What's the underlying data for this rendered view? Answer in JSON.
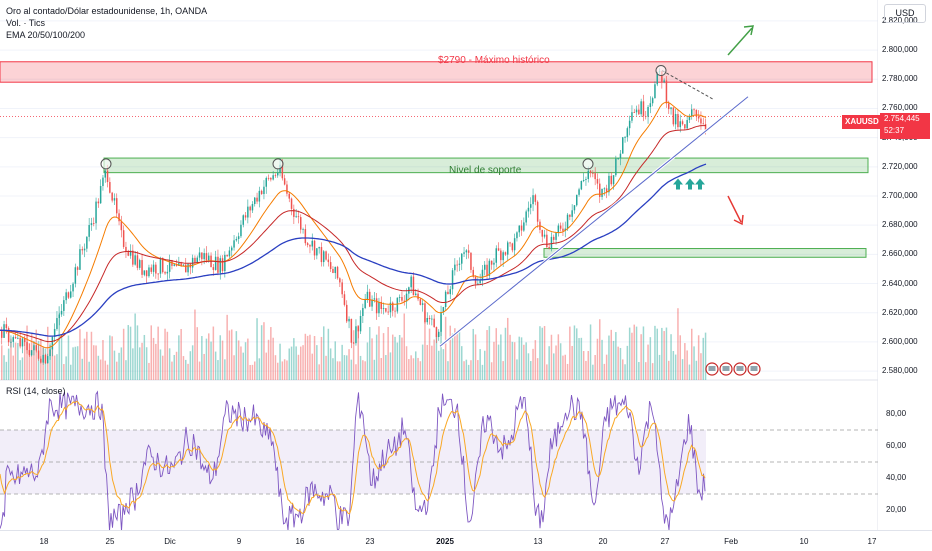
{
  "legend": {
    "symbol_title": "Oro al contado/Dólar estadounidense, 1h, OANDA",
    "volume": "Vol. · Tics",
    "ema": "EMA 20/50/100/200"
  },
  "currency_button": "USD",
  "price_axis_labels": [
    "2.820,000",
    "2.800,000",
    "2.780,000",
    "2.760,000",
    "2.740,000",
    "2.720,000",
    "2.700,000",
    "2.680,000",
    "2.660,000",
    "2.640,000",
    "2.620,000",
    "2.600,000",
    "2.580,000"
  ],
  "current_price": {
    "symbol": "XAUUSD",
    "price": "2.754,445",
    "countdown": "52:37"
  },
  "annotations": {
    "resistance": "$2790 - Máximo histórico",
    "support": "Nivel de soporte"
  },
  "rsi": {
    "title": "RSI (14, close)",
    "axis_labels": [
      "80,00",
      "60,00",
      "40,00",
      "20,00"
    ]
  },
  "time_axis": [
    {
      "label": "18",
      "bold": false
    },
    {
      "label": "25",
      "bold": false
    },
    {
      "label": "Dic",
      "bold": false
    },
    {
      "label": "9",
      "bold": false
    },
    {
      "label": "16",
      "bold": false
    },
    {
      "label": "23",
      "bold": false
    },
    {
      "label": "2025",
      "bold": true
    },
    {
      "label": "13",
      "bold": false
    },
    {
      "label": "20",
      "bold": false
    },
    {
      "label": "27",
      "bold": false
    },
    {
      "label": "Feb",
      "bold": false
    },
    {
      "label": "10",
      "bold": false
    },
    {
      "label": "17",
      "bold": false
    }
  ],
  "colors": {
    "up": "#26a69a",
    "down": "#ef5350",
    "ema_blue": "#2a3fc1",
    "ema_orange": "#f57c00",
    "rsi_line": "#7e57c2",
    "rsi_ma": "#f9a825",
    "resistance": "#f23645",
    "support": "#4caf50"
  },
  "chart_data": {
    "type": "line",
    "title": "Oro al contado/Dólar estadounidense, 1h, OANDA",
    "x": [
      "18",
      "25",
      "Dic",
      "9",
      "16",
      "23",
      "2025",
      "13",
      "20",
      "27"
    ],
    "series": [
      {
        "name": "XAUUSD",
        "values": [
          2590,
          2718,
          2640,
          2718,
          2640,
          2620,
          2610,
          2690,
          2718,
          2754
        ]
      }
    ],
    "ylim": [
      2575,
      2830
    ],
    "resistance_level": 2790,
    "support_zone": [
      2716,
      2726
    ],
    "lower_zone": [
      2658,
      2664
    ],
    "rsi_ylim": [
      10,
      90
    ],
    "rsi_levels": [
      70,
      50,
      30
    ]
  }
}
